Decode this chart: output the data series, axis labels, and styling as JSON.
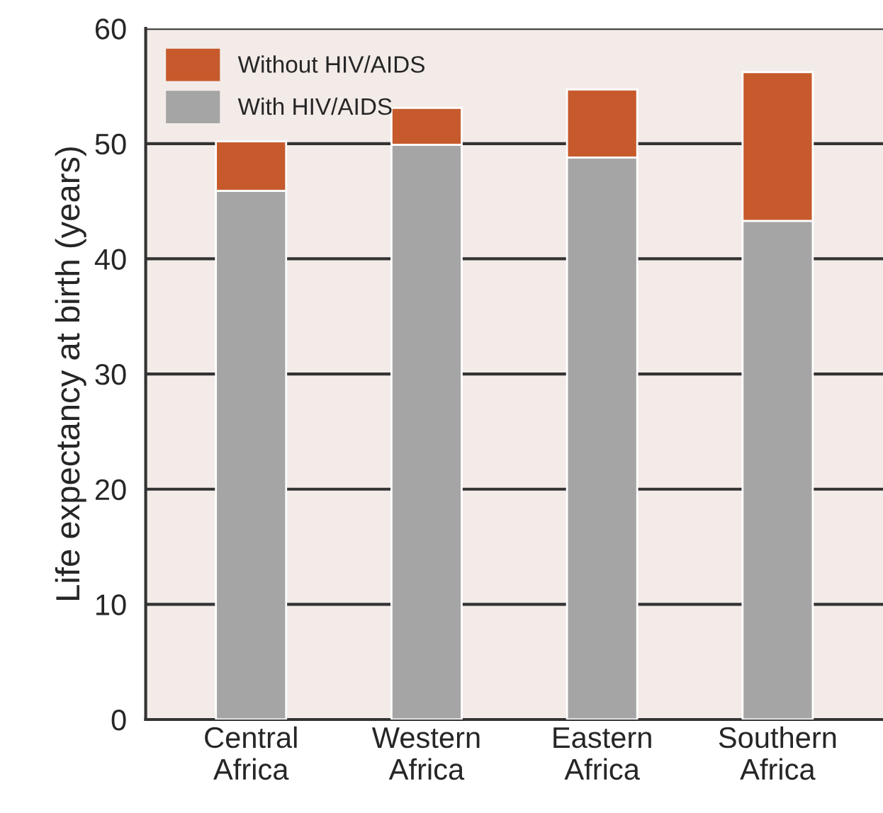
{
  "chart_data": {
    "type": "bar",
    "stacked": true,
    "categories": [
      "Central\nAfrica",
      "Western\nAfrica",
      "Eastern\nAfrica",
      "Southern\nAfrica"
    ],
    "series": [
      {
        "name": "With HIV/AIDS",
        "color": "#a5a5a5",
        "values": [
          45.9,
          49.9,
          48.8,
          43.3
        ]
      },
      {
        "name": "Without HIV/AIDS",
        "color": "#c65a2c",
        "values": [
          4.3,
          3.2,
          5.9,
          12.9
        ]
      }
    ],
    "ylabel": "Life expectancy at birth (years)",
    "ylim": [
      0,
      60
    ],
    "yticks": [
      0,
      10,
      20,
      30,
      40,
      50,
      60
    ],
    "grid": "y",
    "legend": "top left"
  }
}
